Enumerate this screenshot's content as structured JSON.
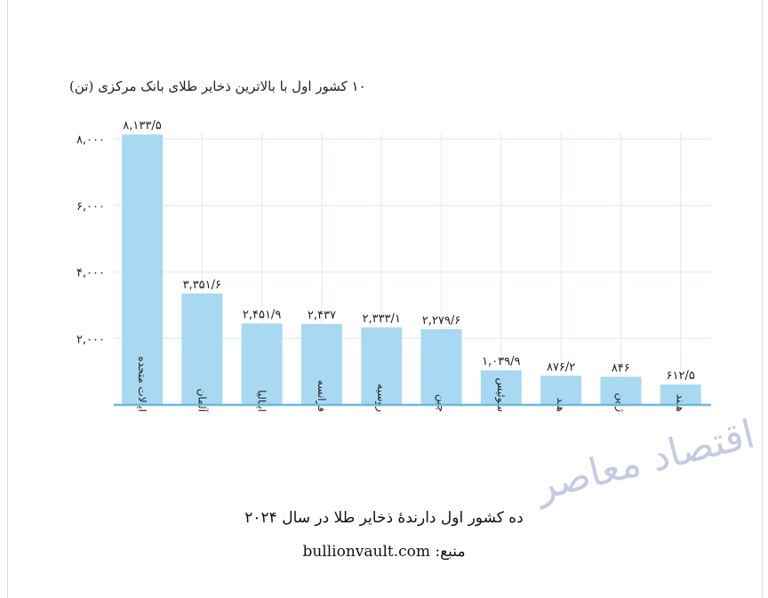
{
  "chart_data": {
    "type": "bar",
    "title": "۱۰ کشور اول با بالاترین ذخایر طلای بانک مرکزی (تن)",
    "categories": [
      "ایالات متحده",
      "آلمان",
      "ایتالیا",
      "فرانسه",
      "روسیه",
      "چین",
      "سوئیس",
      "هند",
      "ژاپن",
      "هلند"
    ],
    "values": [
      8133.5,
      3351.6,
      2451.9,
      2437,
      2333.1,
      2279.6,
      1039.9,
      876.2,
      846,
      612.5
    ],
    "value_labels": [
      "۸,۱۳۳/۵",
      "۳,۳۵۱/۶",
      "۲,۴۵۱/۹",
      "۲,۴۳۷",
      "۲,۳۳۳/۱",
      "۲,۲۷۹/۶",
      "۱,۰۳۹/۹",
      "۸۷۶/۲",
      "۸۴۶",
      "۶۱۲/۵"
    ],
    "yticks": [
      2000,
      4000,
      6000,
      8000
    ],
    "ytick_labels": [
      "۲,۰۰۰",
      "۴,۰۰۰",
      "۶,۰۰۰",
      "۸,۰۰۰"
    ],
    "ylim": [
      0,
      8133.5
    ],
    "grid": true,
    "bar_color": "#a9d8f2",
    "grid_color": "#e3f1f9",
    "axis_color": "#6fb7dd"
  },
  "caption": "ده کشور اول دارندهٔ ذخایر طلا در سال ۲۰۲۴",
  "source": "منبع: bullionvault.com",
  "watermark": "اقتصاد معاصر"
}
